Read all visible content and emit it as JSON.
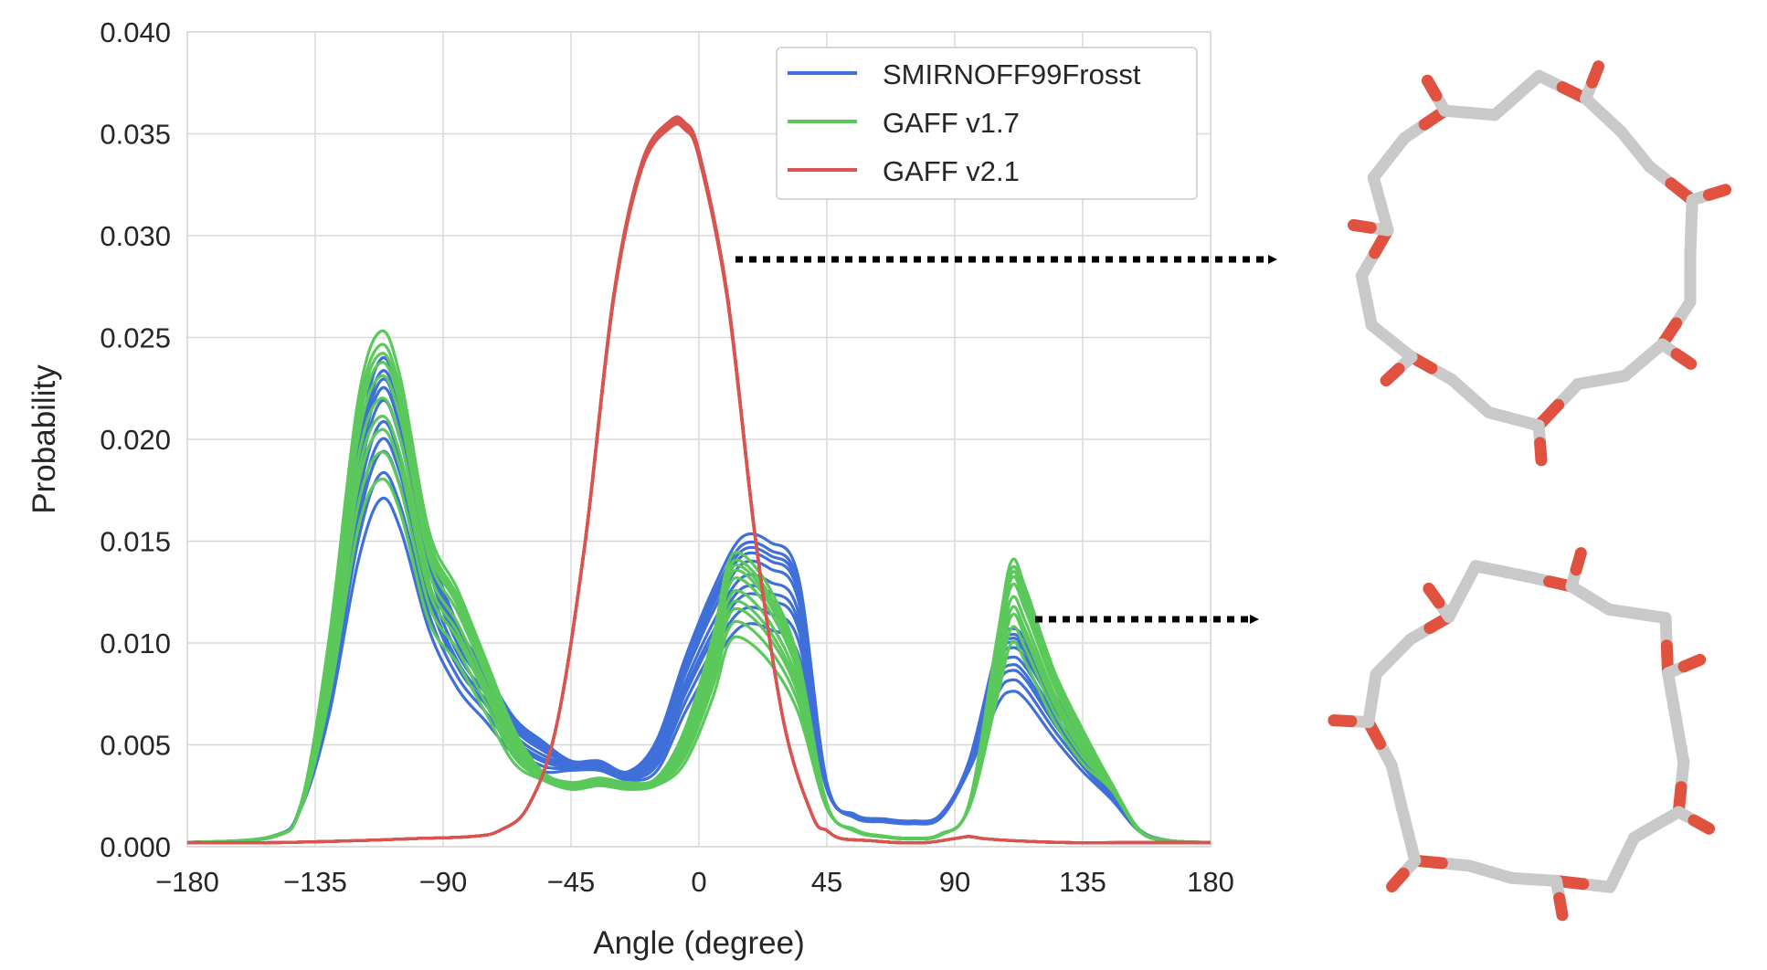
{
  "chart_data": {
    "type": "line",
    "xlabel": "Angle (degree)",
    "ylabel": "Probability",
    "xlim": [
      -180,
      180
    ],
    "ylim": [
      0,
      0.04
    ],
    "xticks": [
      -180,
      -135,
      -90,
      -45,
      0,
      45,
      90,
      135,
      180
    ],
    "xtick_labels": [
      "−180",
      "−135",
      "−90",
      "−45",
      "0",
      "45",
      "90",
      "135",
      "180"
    ],
    "yticks": [
      0,
      0.005,
      0.01,
      0.015,
      0.02,
      0.025,
      0.03,
      0.035,
      0.04
    ],
    "ytick_labels": [
      "0.000",
      "0.005",
      "0.010",
      "0.015",
      "0.020",
      "0.025",
      "0.030",
      "0.035",
      "0.040"
    ],
    "grid": true,
    "legend_position": "top-right",
    "series": [
      {
        "name": "SMIRNOFF99Frosst",
        "color": "#3f6fd8",
        "replicates": 10,
        "x": [
          -180,
          -150,
          -140,
          -130,
          -120,
          -112,
          -105,
          -95,
          -85,
          -75,
          -65,
          -55,
          -45,
          -35,
          -25,
          -15,
          -5,
          5,
          15,
          25,
          35,
          45,
          55,
          65,
          75,
          85,
          95,
          105,
          110,
          115,
          125,
          135,
          145,
          155,
          165,
          180
        ],
        "values": [
          0.0002,
          0.0005,
          0.002,
          0.008,
          0.017,
          0.0208,
          0.019,
          0.013,
          0.0095,
          0.0075,
          0.0055,
          0.0045,
          0.004,
          0.004,
          0.0035,
          0.0045,
          0.008,
          0.011,
          0.0132,
          0.013,
          0.0115,
          0.003,
          0.0015,
          0.0013,
          0.0012,
          0.0015,
          0.004,
          0.0085,
          0.0093,
          0.0088,
          0.0065,
          0.0045,
          0.0025,
          0.0008,
          0.0003,
          0.0002
        ]
      },
      {
        "name": "GAFF v1.7",
        "color": "#5ac85a",
        "replicates": 10,
        "x": [
          -180,
          -150,
          -140,
          -130,
          -120,
          -112,
          -105,
          -95,
          -85,
          -75,
          -65,
          -55,
          -45,
          -35,
          -25,
          -15,
          -5,
          5,
          10,
          15,
          25,
          35,
          45,
          55,
          65,
          75,
          85,
          95,
          105,
          110,
          115,
          125,
          135,
          145,
          155,
          165,
          180
        ],
        "values": [
          0.0002,
          0.0005,
          0.002,
          0.009,
          0.019,
          0.022,
          0.02,
          0.0135,
          0.011,
          0.008,
          0.005,
          0.0035,
          0.003,
          0.0032,
          0.003,
          0.0032,
          0.005,
          0.009,
          0.012,
          0.0125,
          0.011,
          0.008,
          0.002,
          0.0008,
          0.0005,
          0.0004,
          0.0006,
          0.002,
          0.009,
          0.0122,
          0.011,
          0.0075,
          0.005,
          0.003,
          0.0008,
          0.0003,
          0.0002
        ]
      },
      {
        "name": "GAFF v2.1",
        "color": "#d9534f",
        "replicates": 10,
        "x": [
          -180,
          -150,
          -120,
          -100,
          -80,
          -70,
          -60,
          -50,
          -40,
          -30,
          -20,
          -10,
          -5,
          0,
          10,
          20,
          30,
          40,
          45,
          50,
          60,
          70,
          80,
          90,
          95,
          100,
          110,
          130,
          150,
          180
        ],
        "values": [
          0.0002,
          0.0002,
          0.0003,
          0.0004,
          0.0005,
          0.0008,
          0.002,
          0.006,
          0.015,
          0.027,
          0.0335,
          0.0355,
          0.0354,
          0.034,
          0.027,
          0.015,
          0.006,
          0.0015,
          0.0008,
          0.0004,
          0.0003,
          0.0002,
          0.0002,
          0.0004,
          0.0005,
          0.0004,
          0.0003,
          0.0002,
          0.0002,
          0.0002
        ]
      }
    ],
    "annotations": [
      {
        "type": "dotted-arrow",
        "from_x": 12,
        "from_y": 0.0286,
        "points_to": "structure-top"
      },
      {
        "type": "dotted-arrow",
        "from_x": 117,
        "from_y": 0.011,
        "points_to": "structure-bottom"
      }
    ]
  },
  "structures": {
    "bond_color": "#c9c9c9",
    "oxygen_color": "#e0523f",
    "items": [
      {
        "id": "structure-top"
      },
      {
        "id": "structure-bottom"
      }
    ]
  }
}
